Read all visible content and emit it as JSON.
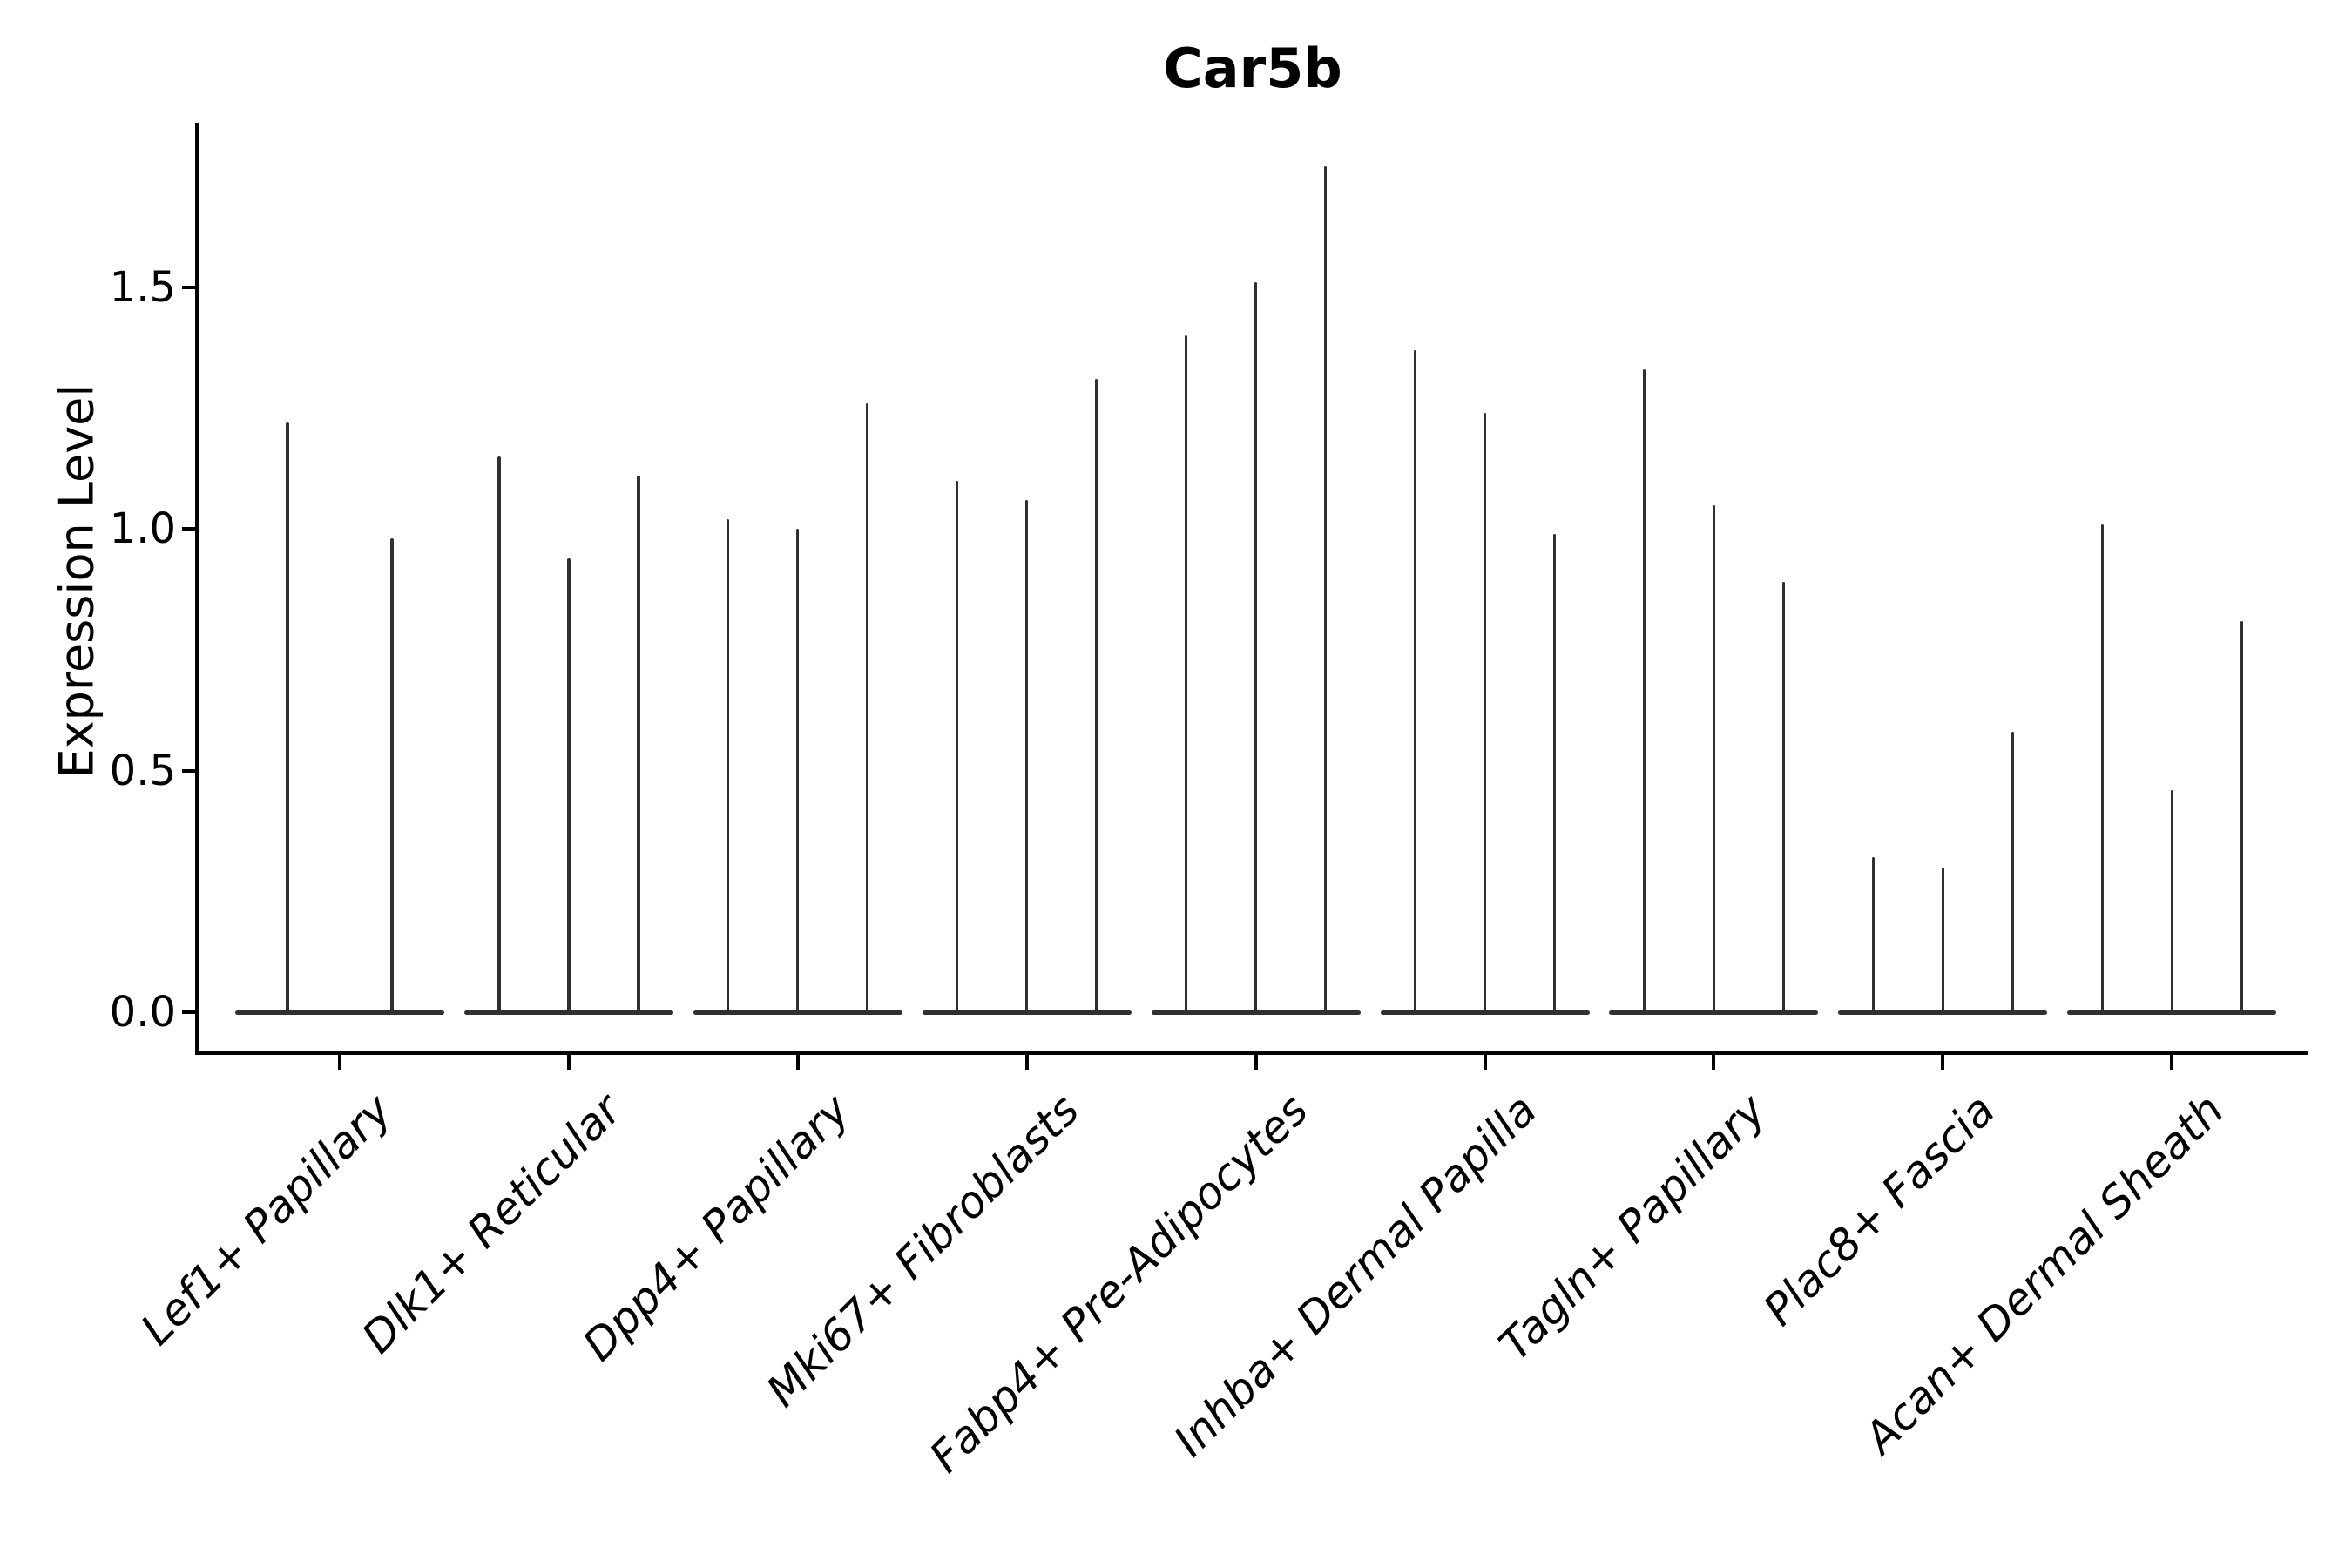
{
  "chart_data": {
    "type": "violin",
    "title": "Car5b",
    "xlabel": "",
    "ylabel": "Expression Level",
    "y_ticks": [
      0.0,
      0.5,
      1.0,
      1.5
    ],
    "y_tick_labels": [
      "0.0",
      "0.5",
      "1.0",
      "1.5"
    ],
    "ylim": [
      -0.09,
      1.84
    ],
    "grid": false,
    "legend": "none",
    "categories": [
      "Lef1+ Papillary",
      "Dlk1+ Reticular",
      "Dpp4+ Papillary",
      "Mki67+ Fibroblasts",
      "Fabp4+ Pre-Adipocytes",
      "Inhba+ Dermal Papilla",
      "Tagln+ Papillary",
      "Plac8+ Fascia",
      "Acan+ Dermal Sheath"
    ],
    "series": [
      {
        "category": "Lef1+ Papillary",
        "violin_max_values": [
          1.22,
          0.98
        ]
      },
      {
        "category": "Dlk1+ Reticular",
        "violin_max_values": [
          1.15,
          0.94,
          1.11
        ]
      },
      {
        "category": "Dpp4+ Papillary",
        "violin_max_values": [
          1.02,
          1.0,
          1.26
        ]
      },
      {
        "category": "Mki67+ Fibroblasts",
        "violin_max_values": [
          1.1,
          1.06,
          1.31
        ]
      },
      {
        "category": "Fabp4+ Pre-Adipocytes",
        "violin_max_values": [
          1.4,
          1.51,
          1.75
        ]
      },
      {
        "category": "Inhba+ Dermal Papilla",
        "violin_max_values": [
          1.37,
          1.24,
          0.99
        ]
      },
      {
        "category": "Tagln+ Papillary",
        "violin_max_values": [
          1.33,
          1.05,
          0.89
        ]
      },
      {
        "category": "Plac8+ Fascia",
        "violin_max_values": [
          0.32,
          0.3,
          0.58
        ]
      },
      {
        "category": "Acan+ Dermal Sheath",
        "violin_max_values": [
          1.01,
          0.46,
          0.81
        ]
      }
    ],
    "description": "Density is concentrated at 0 for every group (flat violin bodies along the baseline) with a single narrow spike up to the max expression value per violin.",
    "style": {
      "violin_color": "#303030",
      "axis_color": "#000000",
      "background_color": "#ffffff",
      "x_label_style": "italic, rotated 45 degrees"
    }
  }
}
